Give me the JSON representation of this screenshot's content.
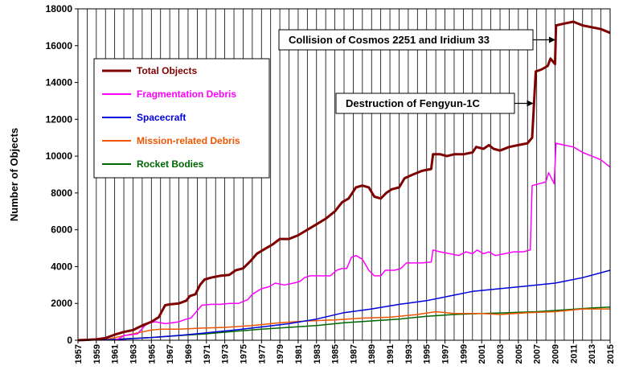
{
  "chart_data": {
    "type": "line",
    "title": "",
    "xlabel": "",
    "ylabel": "Number of Objects",
    "xlim": [
      1957,
      2015
    ],
    "ylim": [
      0,
      18000
    ],
    "y_ticks": [
      0,
      2000,
      4000,
      6000,
      8000,
      10000,
      12000,
      14000,
      16000,
      18000
    ],
    "x_ticks": [
      1957,
      1959,
      1961,
      1963,
      1965,
      1967,
      1969,
      1971,
      1973,
      1975,
      1977,
      1979,
      1981,
      1983,
      1985,
      1987,
      1989,
      1991,
      1993,
      1995,
      1997,
      1999,
      2001,
      2003,
      2005,
      2007,
      2009,
      2011,
      2013,
      2015
    ],
    "grid": "vertical",
    "legend_position": "upper-left",
    "series": [
      {
        "name": "Total Objects",
        "color": "#7f0000",
        "width": 3,
        "points": [
          [
            1957,
            0
          ],
          [
            1958,
            20
          ],
          [
            1959,
            50
          ],
          [
            1960,
            120
          ],
          [
            1961,
            300
          ],
          [
            1962,
            450
          ],
          [
            1963,
            550
          ],
          [
            1964,
            800
          ],
          [
            1965,
            1000
          ],
          [
            1965.8,
            1250
          ],
          [
            1966.5,
            1900
          ],
          [
            1967,
            1950
          ],
          [
            1968,
            2000
          ],
          [
            1968.8,
            2150
          ],
          [
            1969.2,
            2400
          ],
          [
            1969.8,
            2500
          ],
          [
            1970.3,
            3000
          ],
          [
            1970.8,
            3300
          ],
          [
            1971.5,
            3400
          ],
          [
            1972.5,
            3500
          ],
          [
            1973.5,
            3550
          ],
          [
            1974.2,
            3800
          ],
          [
            1975,
            3900
          ],
          [
            1975.8,
            4300
          ],
          [
            1976.5,
            4700
          ],
          [
            1977.5,
            5000
          ],
          [
            1978.2,
            5200
          ],
          [
            1979,
            5500
          ],
          [
            1980,
            5500
          ],
          [
            1981,
            5700
          ],
          [
            1982,
            6000
          ],
          [
            1983,
            6300
          ],
          [
            1984,
            6600
          ],
          [
            1985,
            7000
          ],
          [
            1985.8,
            7500
          ],
          [
            1986.5,
            7700
          ],
          [
            1987.3,
            8300
          ],
          [
            1988,
            8400
          ],
          [
            1988.7,
            8300
          ],
          [
            1989.3,
            7800
          ],
          [
            1990,
            7700
          ],
          [
            1990.6,
            8000
          ],
          [
            1991.2,
            8200
          ],
          [
            1992,
            8300
          ],
          [
            1992.6,
            8800
          ],
          [
            1993.5,
            9000
          ],
          [
            1994.5,
            9200
          ],
          [
            1995.5,
            9300
          ],
          [
            1995.7,
            10100
          ],
          [
            1996.5,
            10100
          ],
          [
            1997.2,
            10000
          ],
          [
            1998,
            10100
          ],
          [
            1999,
            10100
          ],
          [
            2000,
            10200
          ],
          [
            2000.4,
            10500
          ],
          [
            2001.2,
            10400
          ],
          [
            2001.8,
            10600
          ],
          [
            2002.3,
            10400
          ],
          [
            2003,
            10300
          ],
          [
            2004,
            10500
          ],
          [
            2005,
            10600
          ],
          [
            2006,
            10700
          ],
          [
            2006.5,
            11000
          ],
          [
            2006.9,
            14600
          ],
          [
            2007.5,
            14700
          ],
          [
            2008.2,
            14900
          ],
          [
            2008.5,
            15300
          ],
          [
            2009,
            15000
          ],
          [
            2009.1,
            17100
          ],
          [
            2010,
            17200
          ],
          [
            2011,
            17300
          ],
          [
            2012,
            17100
          ],
          [
            2013,
            17000
          ],
          [
            2014,
            16900
          ],
          [
            2015,
            16700
          ]
        ]
      },
      {
        "name": "Fragmentation Debris",
        "color": "#ff00ff",
        "width": 1.5,
        "points": [
          [
            1961,
            0
          ],
          [
            1961.5,
            100
          ],
          [
            1962,
            250
          ],
          [
            1962.8,
            300
          ],
          [
            1963.5,
            350
          ],
          [
            1964.3,
            800
          ],
          [
            1964.8,
            950
          ],
          [
            1965.5,
            1000
          ],
          [
            1966.5,
            900
          ],
          [
            1967.3,
            950
          ],
          [
            1968,
            1000
          ],
          [
            1968.8,
            1150
          ],
          [
            1969.3,
            1200
          ],
          [
            1970.5,
            1900
          ],
          [
            1971.5,
            1950
          ],
          [
            1972.5,
            1950
          ],
          [
            1973.5,
            2000
          ],
          [
            1974.5,
            2000
          ],
          [
            1975.5,
            2200
          ],
          [
            1976,
            2500
          ],
          [
            1977,
            2800
          ],
          [
            1977.8,
            2900
          ],
          [
            1978.5,
            3100
          ],
          [
            1979.5,
            3000
          ],
          [
            1980.5,
            3100
          ],
          [
            1981.2,
            3200
          ],
          [
            1981.7,
            3400
          ],
          [
            1982.3,
            3500
          ],
          [
            1983,
            3500
          ],
          [
            1983.8,
            3500
          ],
          [
            1984.5,
            3500
          ],
          [
            1985.2,
            3800
          ],
          [
            1985.8,
            3900
          ],
          [
            1986.3,
            3900
          ],
          [
            1986.8,
            4500
          ],
          [
            1987.3,
            4600
          ],
          [
            1988,
            4400
          ],
          [
            1988.7,
            3800
          ],
          [
            1989.3,
            3500
          ],
          [
            1990,
            3500
          ],
          [
            1990.5,
            3800
          ],
          [
            1991.5,
            3800
          ],
          [
            1992.2,
            3900
          ],
          [
            1992.8,
            4200
          ],
          [
            1993.5,
            4200
          ],
          [
            1994.5,
            4200
          ],
          [
            1995.5,
            4250
          ],
          [
            1995.7,
            4900
          ],
          [
            1996.5,
            4800
          ],
          [
            1997.5,
            4700
          ],
          [
            1998.5,
            4600
          ],
          [
            1999.3,
            4800
          ],
          [
            2000,
            4700
          ],
          [
            2000.5,
            4900
          ],
          [
            2001.2,
            4700
          ],
          [
            2001.8,
            4800
          ],
          [
            2002.5,
            4600
          ],
          [
            2003.5,
            4700
          ],
          [
            2004.5,
            4800
          ],
          [
            2005.5,
            4800
          ],
          [
            2006.3,
            4900
          ],
          [
            2006.5,
            8400
          ],
          [
            2007.3,
            8500
          ],
          [
            2008,
            8600
          ],
          [
            2008.3,
            9100
          ],
          [
            2008.9,
            8500
          ],
          [
            2009.1,
            10700
          ],
          [
            2010,
            10600
          ],
          [
            2011,
            10500
          ],
          [
            2012,
            10200
          ],
          [
            2013,
            10000
          ],
          [
            2014,
            9800
          ],
          [
            2015,
            9400
          ]
        ]
      },
      {
        "name": "Spacecraft",
        "color": "#0000dd",
        "width": 1.5,
        "points": [
          [
            1957,
            0
          ],
          [
            1960,
            20
          ],
          [
            1962,
            60
          ],
          [
            1965,
            150
          ],
          [
            1968,
            260
          ],
          [
            1971,
            400
          ],
          [
            1974,
            550
          ],
          [
            1977,
            720
          ],
          [
            1980,
            900
          ],
          [
            1983,
            1150
          ],
          [
            1986,
            1500
          ],
          [
            1989,
            1700
          ],
          [
            1992,
            1950
          ],
          [
            1995,
            2150
          ],
          [
            1998,
            2450
          ],
          [
            2000,
            2650
          ],
          [
            2003,
            2800
          ],
          [
            2006,
            2950
          ],
          [
            2009,
            3100
          ],
          [
            2012,
            3400
          ],
          [
            2015,
            3800
          ]
        ]
      },
      {
        "name": "Mission-related Debris",
        "color": "#ee5500",
        "width": 1.5,
        "points": [
          [
            1957,
            0
          ],
          [
            1960,
            30
          ],
          [
            1962,
            250
          ],
          [
            1964,
            450
          ],
          [
            1965,
            550
          ],
          [
            1966,
            600
          ],
          [
            1968,
            600
          ],
          [
            1970,
            650
          ],
          [
            1973,
            700
          ],
          [
            1976,
            800
          ],
          [
            1979,
            950
          ],
          [
            1982,
            1050
          ],
          [
            1985,
            1100
          ],
          [
            1988,
            1200
          ],
          [
            1991,
            1250
          ],
          [
            1994,
            1400
          ],
          [
            1996,
            1550
          ],
          [
            1998,
            1450
          ],
          [
            2001,
            1450
          ],
          [
            2003,
            1400
          ],
          [
            2006,
            1500
          ],
          [
            2009,
            1550
          ],
          [
            2012,
            1700
          ],
          [
            2015,
            1700
          ]
        ]
      },
      {
        "name": "Rocket Bodies",
        "color": "#006600",
        "width": 1.5,
        "points": [
          [
            1957,
            0
          ],
          [
            1960,
            20
          ],
          [
            1962,
            80
          ],
          [
            1965,
            150
          ],
          [
            1968,
            250
          ],
          [
            1971,
            350
          ],
          [
            1974,
            480
          ],
          [
            1977,
            600
          ],
          [
            1980,
            700
          ],
          [
            1983,
            800
          ],
          [
            1986,
            950
          ],
          [
            1989,
            1050
          ],
          [
            1992,
            1150
          ],
          [
            1995,
            1300
          ],
          [
            1998,
            1400
          ],
          [
            2001,
            1450
          ],
          [
            2004,
            1500
          ],
          [
            2007,
            1550
          ],
          [
            2010,
            1650
          ],
          [
            2013,
            1750
          ],
          [
            2015,
            1800
          ]
        ]
      }
    ],
    "annotations": [
      {
        "text": "Collision of Cosmos 2251 and Iridium 33",
        "arrow_to": [
          2009.3,
          17000
        ]
      },
      {
        "text": "Destruction of Fengyun-1C",
        "arrow_to": [
          2006.9,
          12600
        ]
      }
    ]
  }
}
